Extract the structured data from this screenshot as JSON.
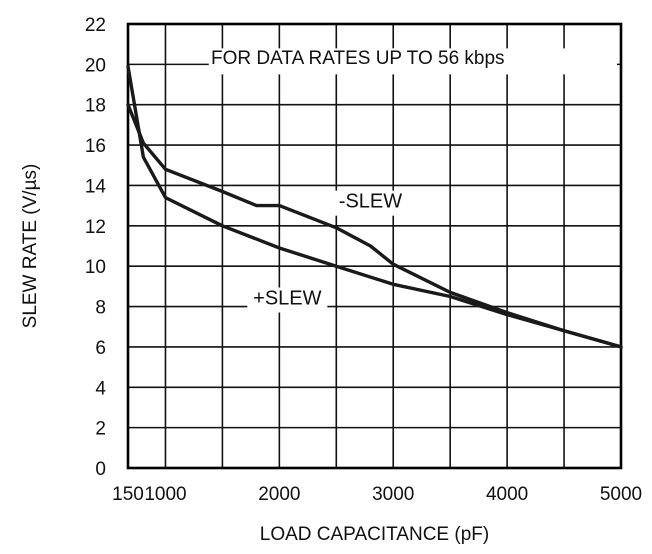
{
  "chart_data": {
    "type": "line",
    "title": "",
    "xlabel": "LOAD CAPACITANCE (pF)",
    "ylabel": "SLEW RATE (V/µs)",
    "annotation": "FOR DATA RATES UP TO 56 kbps",
    "grid": true,
    "x_ticks": [
      150,
      1000,
      2000,
      3000,
      4000,
      5000
    ],
    "y_ticks": [
      0,
      2,
      4,
      6,
      8,
      10,
      12,
      14,
      16,
      18,
      20,
      22
    ],
    "ylim": [
      0,
      22
    ],
    "series": [
      {
        "name": "-SLEW",
        "x": [
          150,
          500,
          1000,
          1500,
          1800,
          2000,
          2500,
          2800,
          3000,
          3500,
          4000,
          4500,
          5000
        ],
        "y": [
          18.0,
          16.1,
          14.8,
          13.7,
          13.0,
          13.0,
          11.9,
          11.0,
          10.1,
          8.7,
          7.7,
          6.8,
          6.0
        ]
      },
      {
        "name": "+SLEW",
        "x": [
          150,
          500,
          1000,
          1500,
          2000,
          2500,
          3000,
          3500,
          4000,
          4500,
          5000
        ],
        "y": [
          19.9,
          15.4,
          13.4,
          12.0,
          10.9,
          10.0,
          9.1,
          8.5,
          7.6,
          6.8,
          6.0
        ]
      }
    ],
    "line_color": "#1a1a1a",
    "grid_color": "#111111"
  }
}
